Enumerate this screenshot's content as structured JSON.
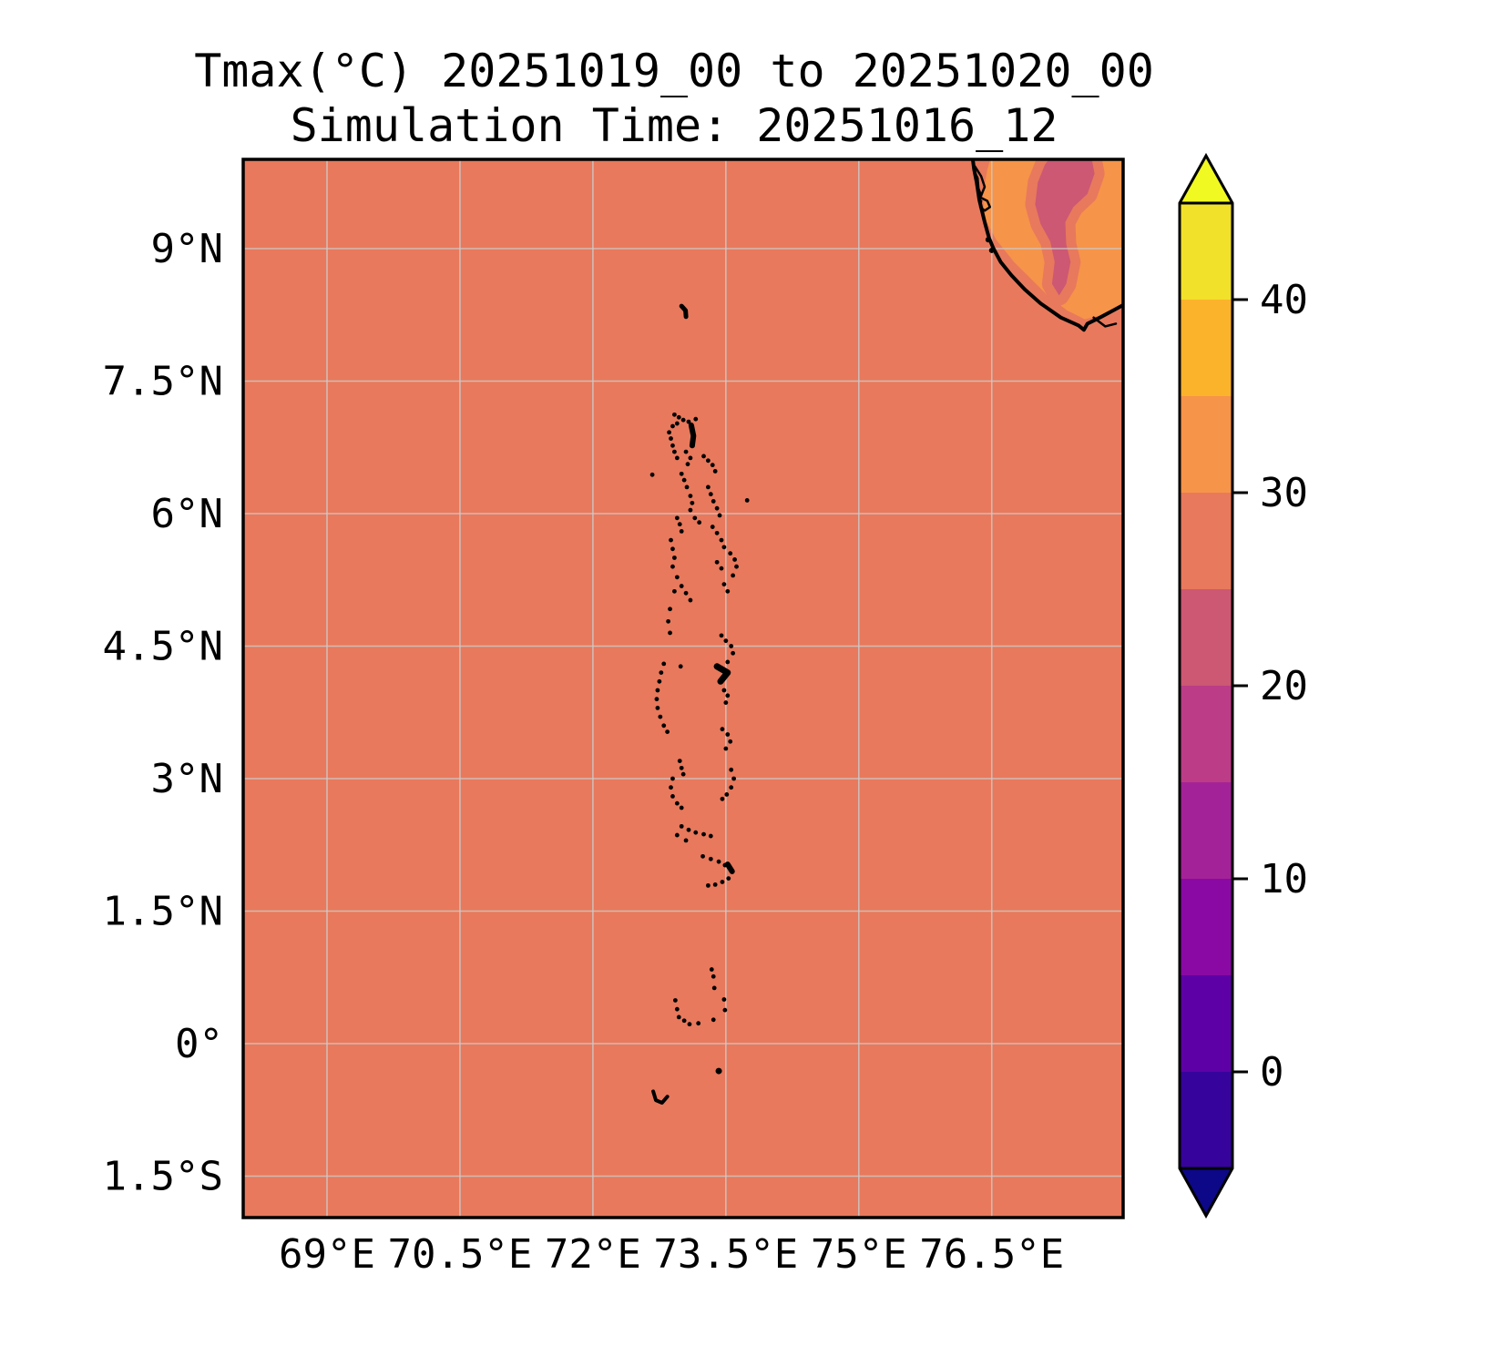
{
  "title": {
    "line1": "Tmax(°C) 20251019_00 to 20251020_00",
    "line2": "Simulation Time: 20251016_12"
  },
  "map": {
    "extent": {
      "lon_min": 68.06,
      "lon_max": 77.98,
      "lat_min": -1.97,
      "lat_max": 10.01
    },
    "x_ticks": [
      {
        "lon": 69.0,
        "label": "69°E"
      },
      {
        "lon": 70.5,
        "label": "70.5°E"
      },
      {
        "lon": 72.0,
        "label": "72°E"
      },
      {
        "lon": 73.5,
        "label": "73.5°E"
      },
      {
        "lon": 75.0,
        "label": "75°E"
      },
      {
        "lon": 76.5,
        "label": "76.5°E"
      }
    ],
    "y_ticks": [
      {
        "lat": 9.0,
        "label": "9°N"
      },
      {
        "lat": 7.5,
        "label": "7.5°N"
      },
      {
        "lat": 6.0,
        "label": "6°N"
      },
      {
        "lat": 4.5,
        "label": "4.5°N"
      },
      {
        "lat": 3.0,
        "label": "3°N"
      },
      {
        "lat": 1.5,
        "label": "1.5°N"
      },
      {
        "lat": 0.0,
        "label": "0°"
      },
      {
        "lat": -1.5,
        "label": "1.5°S"
      }
    ],
    "colors": {
      "sea": "#E8795C",
      "land": "#F69449",
      "ghats_core": "#CC5873",
      "ghats_halo": "#E8795C",
      "coastline": "#000000",
      "gridline": "#cccccc",
      "island": "#000000",
      "frame": "#000000"
    },
    "land_polygon": [
      [
        76.5,
        10.06
      ],
      [
        76.45,
        9.9
      ],
      [
        76.4,
        9.6
      ],
      [
        76.42,
        9.35
      ],
      [
        76.55,
        9.1
      ],
      [
        76.75,
        8.85
      ],
      [
        76.95,
        8.65
      ],
      [
        77.15,
        8.45
      ],
      [
        77.35,
        8.3
      ],
      [
        77.55,
        8.2
      ],
      [
        77.75,
        8.25
      ],
      [
        78.0,
        8.4
      ],
      [
        78.05,
        10.06
      ]
    ],
    "ghats_core_polygon": [
      [
        77.18,
        10.06
      ],
      [
        77.62,
        10.06
      ],
      [
        77.66,
        9.85
      ],
      [
        77.58,
        9.62
      ],
      [
        77.42,
        9.47
      ],
      [
        77.33,
        9.3
      ],
      [
        77.34,
        9.05
      ],
      [
        77.39,
        8.85
      ],
      [
        77.34,
        8.6
      ],
      [
        77.26,
        8.47
      ],
      [
        77.18,
        8.6
      ],
      [
        77.21,
        8.85
      ],
      [
        77.16,
        9.08
      ],
      [
        77.05,
        9.28
      ],
      [
        76.99,
        9.5
      ],
      [
        77.02,
        9.75
      ],
      [
        77.1,
        9.95
      ]
    ],
    "coastline": [
      [
        76.28,
        10.06
      ],
      [
        76.3,
        9.9
      ],
      [
        76.33,
        9.75
      ],
      [
        76.36,
        9.55
      ],
      [
        76.42,
        9.3
      ],
      [
        76.47,
        9.12
      ],
      [
        76.52,
        9.0
      ],
      [
        76.6,
        8.85
      ],
      [
        76.72,
        8.7
      ],
      [
        76.87,
        8.54
      ],
      [
        77.05,
        8.38
      ],
      [
        77.28,
        8.22
      ],
      [
        77.48,
        8.13
      ],
      [
        77.54,
        8.08
      ],
      [
        77.58,
        8.15
      ],
      [
        77.72,
        8.22
      ],
      [
        77.87,
        8.3
      ],
      [
        78.0,
        8.37
      ]
    ],
    "coast_inlets": [
      {
        "points": [
          [
            76.31,
            9.93
          ],
          [
            76.38,
            9.82
          ],
          [
            76.42,
            9.7
          ],
          [
            76.38,
            9.6
          ],
          [
            76.35,
            9.68
          ],
          [
            76.34,
            9.8
          ],
          [
            76.3,
            9.88
          ]
        ],
        "width": 2.5
      },
      {
        "points": [
          [
            76.37,
            9.58
          ],
          [
            76.45,
            9.54
          ],
          [
            76.48,
            9.47
          ],
          [
            76.42,
            9.43
          ],
          [
            76.37,
            9.47
          ],
          [
            76.38,
            9.54
          ]
        ],
        "width": 2.5
      },
      {
        "points": [
          [
            77.65,
            8.22
          ],
          [
            77.78,
            8.12
          ],
          [
            77.9,
            8.15
          ]
        ],
        "width": 2.5
      }
    ],
    "coast_dots": [
      [
        76.46,
        9.1,
        3
      ],
      [
        76.5,
        8.98,
        3
      ]
    ],
    "islands": [
      [
        72.92,
        7.12
      ],
      [
        72.97,
        7.09
      ],
      [
        73.02,
        7.06
      ],
      [
        72.95,
        7.02
      ],
      [
        72.9,
        6.99
      ],
      [
        73.08,
        7.04
      ],
      [
        73.16,
        7.07
      ],
      [
        72.86,
        6.92
      ],
      [
        72.88,
        6.85
      ],
      [
        72.9,
        6.77
      ],
      [
        72.92,
        6.7
      ],
      [
        72.95,
        6.63
      ],
      [
        72.67,
        6.44
      ],
      [
        73.05,
        6.7
      ],
      [
        73.1,
        6.63
      ],
      [
        73.07,
        6.56
      ],
      [
        73.25,
        6.65
      ],
      [
        73.3,
        6.6
      ],
      [
        73.35,
        6.55
      ],
      [
        73.38,
        6.48
      ],
      [
        73.0,
        6.45
      ],
      [
        73.03,
        6.38
      ],
      [
        73.06,
        6.3
      ],
      [
        73.74,
        6.15
      ],
      [
        73.3,
        6.3
      ],
      [
        73.33,
        6.22
      ],
      [
        73.36,
        6.14
      ],
      [
        73.4,
        6.06
      ],
      [
        73.43,
        5.98
      ],
      [
        73.1,
        6.2
      ],
      [
        73.12,
        6.12
      ],
      [
        73.1,
        6.04
      ],
      [
        72.95,
        5.95
      ],
      [
        72.98,
        5.88
      ],
      [
        73.0,
        5.8
      ],
      [
        73.15,
        5.95
      ],
      [
        73.2,
        5.9
      ],
      [
        73.35,
        5.85
      ],
      [
        73.4,
        5.78
      ],
      [
        73.45,
        5.7
      ],
      [
        73.48,
        5.62
      ],
      [
        72.88,
        5.7
      ],
      [
        72.9,
        5.6
      ],
      [
        72.92,
        5.5
      ],
      [
        72.9,
        5.4
      ],
      [
        73.55,
        5.55
      ],
      [
        73.6,
        5.48
      ],
      [
        73.62,
        5.4
      ],
      [
        73.58,
        5.3
      ],
      [
        73.4,
        5.45
      ],
      [
        73.45,
        5.38
      ],
      [
        72.95,
        5.28
      ],
      [
        73.0,
        5.18
      ],
      [
        73.05,
        5.1
      ],
      [
        73.1,
        5.02
      ],
      [
        72.92,
        5.12
      ],
      [
        73.48,
        5.2
      ],
      [
        73.52,
        5.12
      ],
      [
        72.87,
        4.92
      ],
      [
        72.85,
        4.78
      ],
      [
        72.87,
        4.65
      ],
      [
        73.45,
        4.62
      ],
      [
        73.5,
        4.56
      ],
      [
        73.56,
        4.5
      ],
      [
        73.58,
        4.42
      ],
      [
        73.52,
        4.32
      ],
      [
        72.99,
        4.27
      ],
      [
        72.8,
        4.3
      ],
      [
        72.77,
        4.2
      ],
      [
        72.75,
        4.1
      ],
      [
        72.73,
        4.0
      ],
      [
        72.72,
        3.9
      ],
      [
        72.73,
        3.8
      ],
      [
        72.76,
        3.7
      ],
      [
        72.8,
        3.6
      ],
      [
        72.84,
        3.53
      ],
      [
        73.48,
        4.0
      ],
      [
        73.52,
        3.94
      ],
      [
        73.5,
        3.86
      ],
      [
        73.46,
        3.56
      ],
      [
        73.52,
        3.5
      ],
      [
        73.55,
        3.42
      ],
      [
        73.5,
        3.34
      ],
      [
        72.98,
        3.2
      ],
      [
        73.0,
        3.12
      ],
      [
        73.02,
        3.05
      ],
      [
        73.56,
        3.1
      ],
      [
        73.59,
        3.0
      ],
      [
        73.56,
        2.9
      ],
      [
        73.51,
        2.82
      ],
      [
        73.46,
        2.77
      ],
      [
        72.9,
        3.0
      ],
      [
        72.88,
        2.9
      ],
      [
        72.9,
        2.8
      ],
      [
        72.95,
        2.72
      ],
      [
        73.0,
        2.67
      ],
      [
        73.0,
        2.46
      ],
      [
        73.08,
        2.42
      ],
      [
        73.16,
        2.39
      ],
      [
        73.25,
        2.37
      ],
      [
        73.33,
        2.35
      ],
      [
        72.95,
        2.36
      ],
      [
        73.05,
        2.3
      ],
      [
        73.24,
        2.12
      ],
      [
        73.33,
        2.09
      ],
      [
        73.42,
        2.06
      ],
      [
        73.49,
        2.02
      ],
      [
        73.53,
        1.87
      ],
      [
        73.46,
        1.83
      ],
      [
        73.38,
        1.8
      ],
      [
        73.3,
        1.79
      ],
      [
        73.34,
        0.84
      ],
      [
        73.36,
        0.76
      ],
      [
        73.37,
        0.63
      ],
      [
        73.48,
        0.5
      ],
      [
        73.49,
        0.38
      ],
      [
        72.93,
        0.49
      ],
      [
        72.95,
        0.39
      ],
      [
        72.97,
        0.3
      ],
      [
        73.03,
        0.26
      ],
      [
        73.09,
        0.22
      ],
      [
        73.19,
        0.23
      ],
      [
        73.36,
        0.27
      ],
      [
        73.42,
        -0.31,
        3.5
      ]
    ],
    "island_reefs": [
      {
        "points": [
          [
            73.0,
            8.35
          ],
          [
            73.045,
            8.3
          ],
          [
            73.05,
            8.23
          ]
        ],
        "width": 5
      },
      {
        "points": [
          [
            73.11,
            7.0
          ],
          [
            73.135,
            6.88
          ],
          [
            73.12,
            6.77
          ]
        ],
        "width": 6
      },
      {
        "points": [
          [
            73.4,
            4.27
          ],
          [
            73.52,
            4.2
          ],
          [
            73.44,
            4.1
          ]
        ],
        "width": 7
      },
      {
        "points": [
          [
            73.52,
            2.03
          ],
          [
            73.57,
            1.95
          ]
        ],
        "width": 6
      },
      {
        "points": [
          [
            72.68,
            -0.54
          ],
          [
            72.71,
            -0.64
          ],
          [
            72.78,
            -0.67
          ],
          [
            72.84,
            -0.6
          ]
        ],
        "width": 4
      }
    ]
  },
  "colorbar": {
    "levels": [
      -5,
      0,
      5,
      10,
      15,
      20,
      25,
      30,
      35,
      40,
      45
    ],
    "segment_colors": [
      "#36049C",
      "#5D01A6",
      "#8A09A5",
      "#A42298",
      "#BC3C87",
      "#CC5873",
      "#E8795C",
      "#F69449",
      "#FBB32C",
      "#F1E12A"
    ],
    "under_color": "#0D0887",
    "over_color": "#F0F921",
    "ticks": [
      {
        "value": 40,
        "label": "40"
      },
      {
        "value": 30,
        "label": "30"
      },
      {
        "value": 20,
        "label": "20"
      },
      {
        "value": 10,
        "label": "10"
      },
      {
        "value": 0,
        "label": "0"
      }
    ]
  },
  "chart_data": {
    "type": "heatmap",
    "title": "Tmax(°C) 20251019_00 to 20251020_00",
    "subtitle": "Simulation Time: 20251016_12",
    "variable": "Tmax",
    "units": "°C",
    "x_axis": {
      "tick_labels": [
        "69°E",
        "70.5°E",
        "72°E",
        "73.5°E",
        "75°E",
        "76.5°E"
      ],
      "range_deg_east": [
        68.06,
        77.98
      ]
    },
    "y_axis": {
      "tick_labels": [
        "9°N",
        "7.5°N",
        "6°N",
        "4.5°N",
        "3°N",
        "1.5°N",
        "0°",
        "1.5°S"
      ],
      "range_deg_north": [
        -1.97,
        10.01
      ]
    },
    "colorbar": {
      "tick_values": [
        0,
        10,
        20,
        30,
        40
      ],
      "level_range": [
        -5,
        45
      ],
      "level_step": 5,
      "extend": "both",
      "colormap": "plasma-like",
      "position": "right"
    },
    "grid": true,
    "field_values": [
      {
        "region": "ocean (most of domain)",
        "tmax_bin_c": "25-30"
      },
      {
        "region": "southwest India coastal land (top-right)",
        "tmax_bin_c": "30-35"
      },
      {
        "region": "Western Ghats interior ridge",
        "tmax_bin_c": "20-25 core with 25-30 fringe"
      },
      {
        "region": "Maldives atoll chain ~73°E from 8.3°N to 0.7°S",
        "tmax_bin_c": "drawn as black island outlines over 25-30 ocean"
      }
    ]
  }
}
